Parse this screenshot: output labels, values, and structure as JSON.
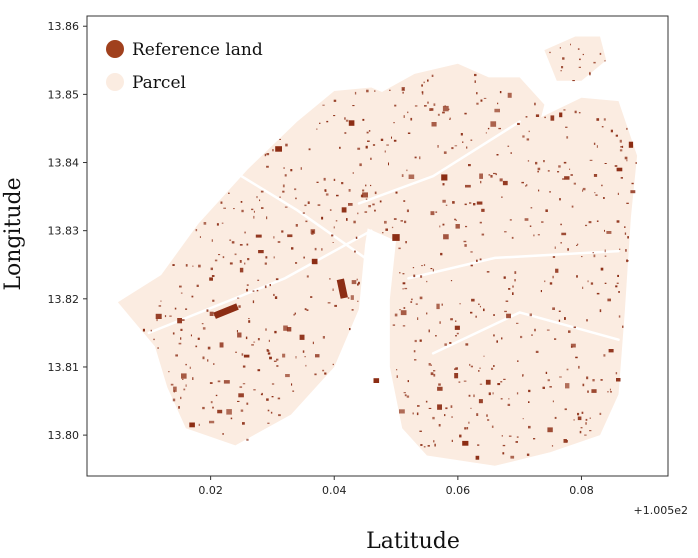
{
  "colors": {
    "parcel": "#fbece1",
    "reference_land": "#8c2d14",
    "legend_reference_marker": "#a0401d",
    "frame": "#333333"
  },
  "axes": {
    "xlabel": "Latitude",
    "ylabel": "Longitude",
    "xlim": [
      0.0,
      0.094
    ],
    "ylim": [
      13.794,
      13.8615
    ],
    "x_ticks": [
      {
        "value": 0.02,
        "label": "0.02"
      },
      {
        "value": 0.04,
        "label": "0.04"
      },
      {
        "value": 0.06,
        "label": "0.06"
      },
      {
        "value": 0.08,
        "label": "0.08"
      }
    ],
    "x_offset_label": "+1.005e2",
    "y_ticks": [
      {
        "value": 13.8,
        "label": "13.80"
      },
      {
        "value": 13.81,
        "label": "13.81"
      },
      {
        "value": 13.82,
        "label": "13.82"
      },
      {
        "value": 13.83,
        "label": "13.83"
      },
      {
        "value": 13.84,
        "label": "13.84"
      },
      {
        "value": 13.85,
        "label": "13.85"
      },
      {
        "value": 13.86,
        "label": "13.86"
      }
    ]
  },
  "legend": {
    "placement": "top-left",
    "items": [
      {
        "label": "Reference land",
        "color_key": "reference_land"
      },
      {
        "label": "Parcel",
        "color_key": "parcel"
      }
    ]
  },
  "map_layers": {
    "parcel_regions": [
      {
        "name": "west-district",
        "points": [
          [
            0.005,
            13.8195
          ],
          [
            0.012,
            13.8235
          ],
          [
            0.018,
            13.831
          ],
          [
            0.026,
            13.839
          ],
          [
            0.034,
            13.846
          ],
          [
            0.04,
            13.8505
          ],
          [
            0.046,
            13.851
          ],
          [
            0.05,
            13.8495
          ],
          [
            0.047,
            13.8395
          ],
          [
            0.045,
            13.828
          ],
          [
            0.044,
            13.8185
          ],
          [
            0.04,
            13.81
          ],
          [
            0.033,
            13.803
          ],
          [
            0.024,
            13.7985
          ],
          [
            0.016,
            13.801
          ],
          [
            0.013,
            13.807
          ],
          [
            0.011,
            13.813
          ]
        ]
      },
      {
        "name": "central-strip",
        "points": [
          [
            0.04,
            13.8445
          ],
          [
            0.046,
            13.8495
          ],
          [
            0.053,
            13.853
          ],
          [
            0.06,
            13.8545
          ],
          [
            0.065,
            13.8525
          ],
          [
            0.07,
            13.8525
          ],
          [
            0.074,
            13.8485
          ],
          [
            0.071,
            13.838
          ],
          [
            0.064,
            13.8325
          ],
          [
            0.056,
            13.8295
          ],
          [
            0.05,
            13.8285
          ],
          [
            0.045,
            13.8305
          ],
          [
            0.043,
            13.836
          ]
        ]
      },
      {
        "name": "east-district",
        "points": [
          [
            0.05,
            13.8285
          ],
          [
            0.056,
            13.8355
          ],
          [
            0.064,
            13.8405
          ],
          [
            0.072,
            13.846
          ],
          [
            0.08,
            13.8495
          ],
          [
            0.086,
            13.849
          ],
          [
            0.089,
            13.841
          ],
          [
            0.088,
            13.832
          ],
          [
            0.087,
            13.818
          ],
          [
            0.086,
            13.806
          ],
          [
            0.083,
            13.8
          ],
          [
            0.075,
            13.7975
          ],
          [
            0.066,
            13.7955
          ],
          [
            0.055,
            13.797
          ],
          [
            0.051,
            13.801
          ],
          [
            0.049,
            13.81
          ],
          [
            0.049,
            13.82
          ]
        ]
      },
      {
        "name": "north-east-fragment",
        "points": [
          [
            0.074,
            13.8565
          ],
          [
            0.079,
            13.8585
          ],
          [
            0.083,
            13.8585
          ],
          [
            0.084,
            13.855
          ],
          [
            0.08,
            13.852
          ],
          [
            0.076,
            13.852
          ]
        ]
      }
    ],
    "reference_features": [
      {
        "x": 0.0225,
        "y": 13.8182,
        "w": 0.004,
        "h": 0.001
      },
      {
        "x": 0.0413,
        "y": 13.8215,
        "w": 0.0012,
        "h": 0.0028
      },
      {
        "x": 0.05,
        "y": 13.829,
        "w": 0.0012,
        "h": 0.001
      },
      {
        "x": 0.031,
        "y": 13.842,
        "w": 0.0011,
        "h": 0.0008
      },
      {
        "x": 0.0578,
        "y": 13.8378,
        "w": 0.001,
        "h": 0.0009
      },
      {
        "x": 0.0428,
        "y": 13.8458,
        "w": 0.0009,
        "h": 0.0008
      },
      {
        "x": 0.088,
        "y": 13.8426,
        "w": 0.0007,
        "h": 0.0009
      },
      {
        "x": 0.017,
        "y": 13.8015,
        "w": 0.0009,
        "h": 0.0007
      },
      {
        "x": 0.0612,
        "y": 13.7988,
        "w": 0.001,
        "h": 0.0007
      },
      {
        "x": 0.0468,
        "y": 13.808,
        "w": 0.0009,
        "h": 0.0007
      }
    ]
  }
}
